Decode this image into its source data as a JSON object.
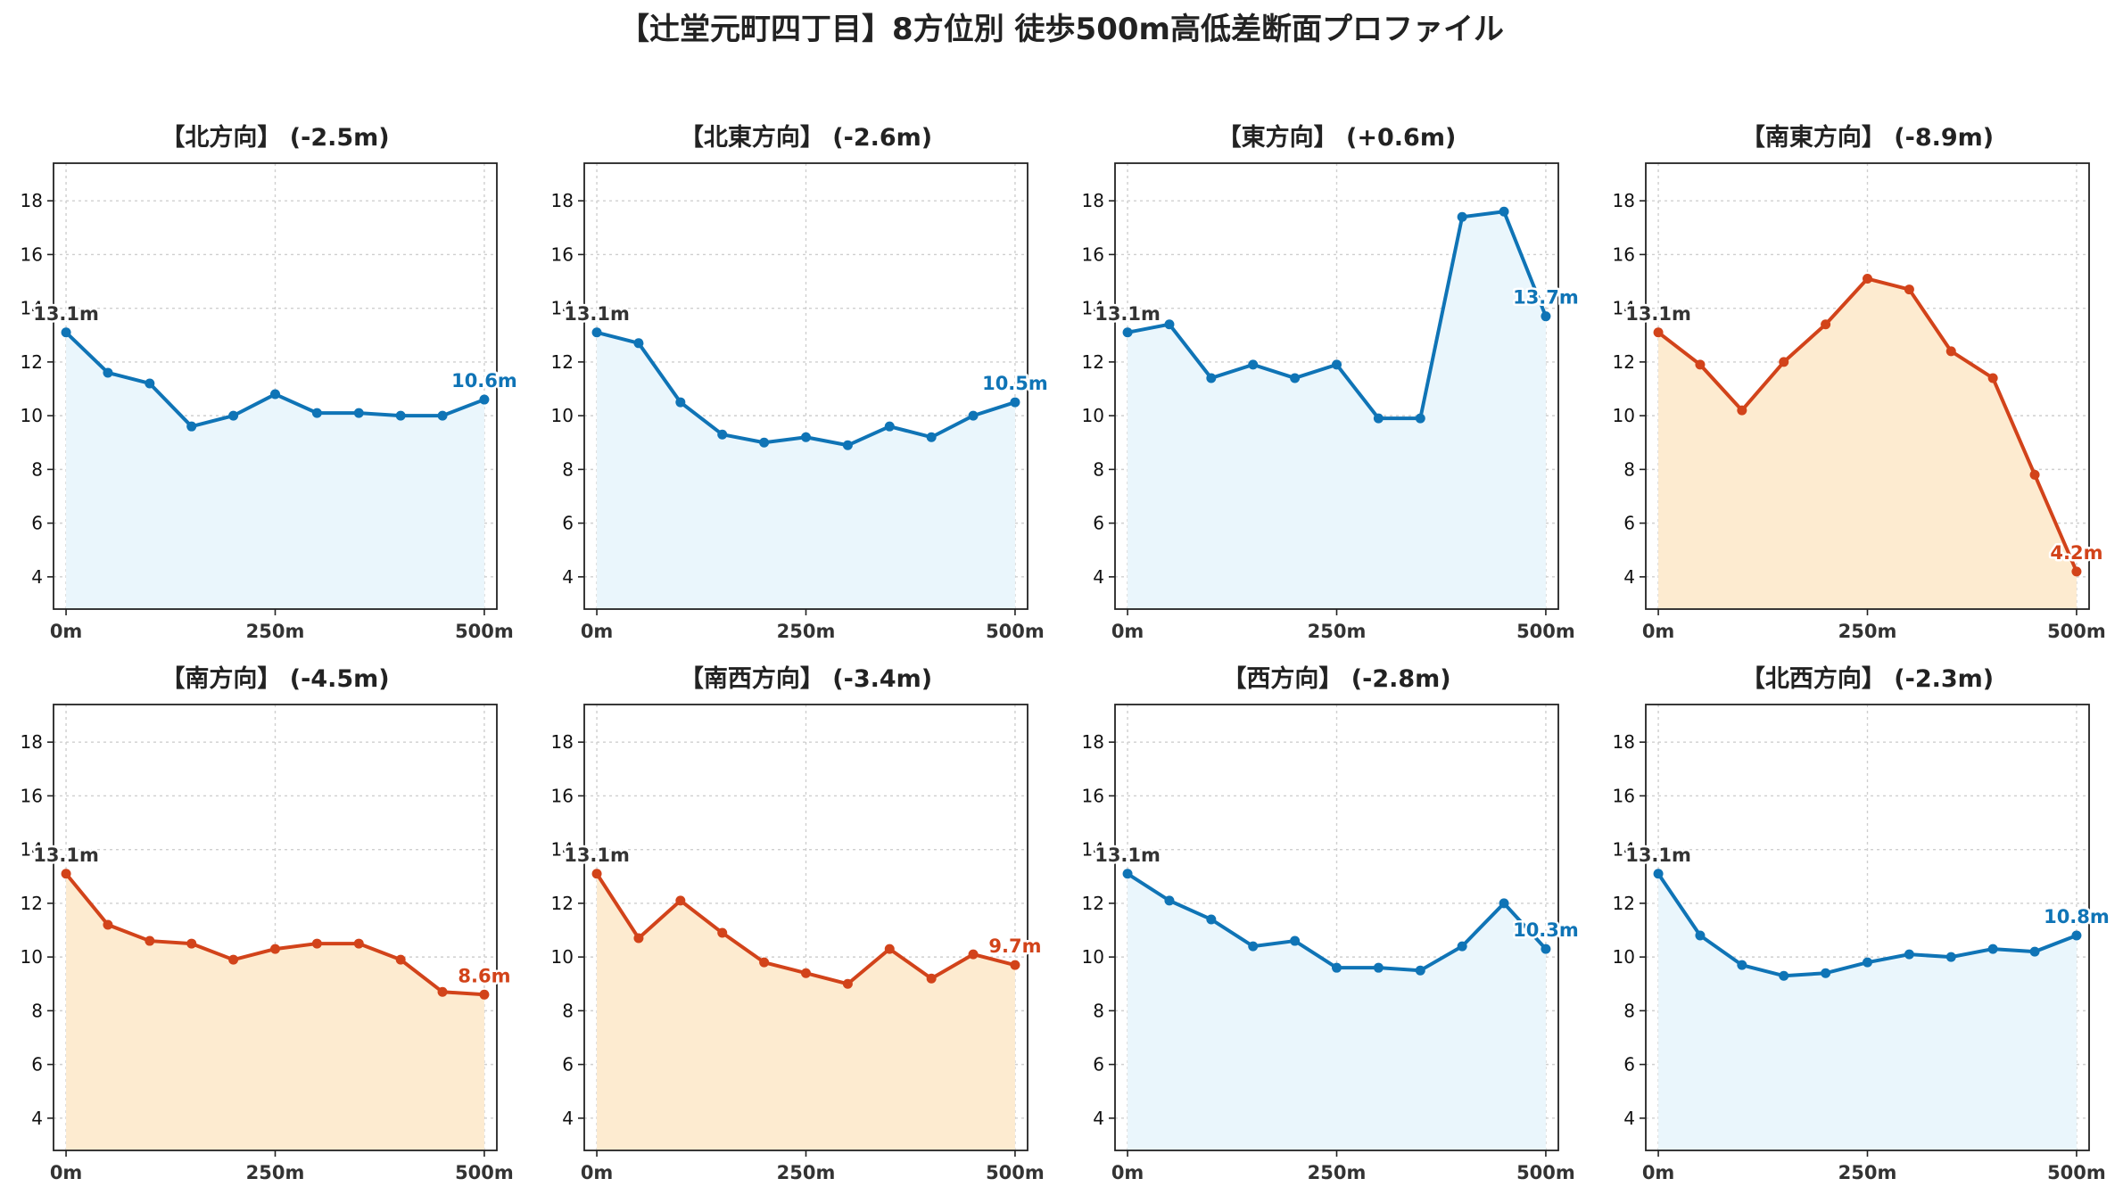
{
  "title": "【辻堂元町四丁目】8方位別 徒歩500m高低差断面プロファイル",
  "colors": {
    "down_line": "#D2431A",
    "down_fill": "#FDEBD0",
    "level_line": "#0F74B6",
    "level_fill": "#EAF6FC",
    "start_label": "#333333"
  },
  "chart_data": [
    {
      "type": "area",
      "title": "【北方向】 (-2.5m)",
      "trend": "level",
      "x": [
        0,
        50,
        100,
        150,
        200,
        250,
        300,
        350,
        400,
        450,
        500
      ],
      "values": [
        13.1,
        11.6,
        11.2,
        9.6,
        10.0,
        10.8,
        10.1,
        10.1,
        10.0,
        10.0,
        10.6
      ],
      "start_label": "13.1m",
      "end_label": "10.6m",
      "xticks": [
        "0m",
        "250m",
        "500m"
      ],
      "yticks": [
        "4",
        "6",
        "8",
        "10",
        "12",
        "14",
        "16",
        "18"
      ],
      "ylim": [
        2.8,
        19.4
      ],
      "xlim": [
        -15,
        515
      ],
      "grid": true
    },
    {
      "type": "area",
      "title": "【北東方向】 (-2.6m)",
      "trend": "level",
      "x": [
        0,
        50,
        100,
        150,
        200,
        250,
        300,
        350,
        400,
        450,
        500
      ],
      "values": [
        13.1,
        12.7,
        10.5,
        9.3,
        9.0,
        9.2,
        8.9,
        9.6,
        9.2,
        10.0,
        10.5
      ],
      "start_label": "13.1m",
      "end_label": "10.5m",
      "xticks": [
        "0m",
        "250m",
        "500m"
      ],
      "yticks": [
        "4",
        "6",
        "8",
        "10",
        "12",
        "14",
        "16",
        "18"
      ],
      "ylim": [
        2.8,
        19.4
      ],
      "xlim": [
        -15,
        515
      ],
      "grid": true
    },
    {
      "type": "area",
      "title": "【東方向】 (+0.6m)",
      "trend": "level",
      "x": [
        0,
        50,
        100,
        150,
        200,
        250,
        300,
        350,
        400,
        450,
        500
      ],
      "values": [
        13.1,
        13.4,
        11.4,
        11.9,
        11.4,
        11.9,
        9.9,
        9.9,
        17.4,
        17.6,
        13.7
      ],
      "start_label": "13.1m",
      "end_label": "13.7m",
      "xticks": [
        "0m",
        "250m",
        "500m"
      ],
      "yticks": [
        "4",
        "6",
        "8",
        "10",
        "12",
        "14",
        "16",
        "18"
      ],
      "ylim": [
        2.8,
        19.4
      ],
      "xlim": [
        -15,
        515
      ],
      "grid": true
    },
    {
      "type": "area",
      "title": "【南東方向】 (-8.9m)",
      "trend": "down",
      "x": [
        0,
        50,
        100,
        150,
        200,
        250,
        300,
        350,
        400,
        450,
        500
      ],
      "values": [
        13.1,
        11.9,
        10.2,
        12.0,
        13.4,
        15.1,
        14.7,
        12.4,
        11.4,
        7.8,
        4.2
      ],
      "start_label": "13.1m",
      "end_label": "4.2m",
      "xticks": [
        "0m",
        "250m",
        "500m"
      ],
      "yticks": [
        "4",
        "6",
        "8",
        "10",
        "12",
        "14",
        "16",
        "18"
      ],
      "ylim": [
        2.8,
        19.4
      ],
      "xlim": [
        -15,
        515
      ],
      "grid": true
    },
    {
      "type": "area",
      "title": "【南方向】 (-4.5m)",
      "trend": "down",
      "x": [
        0,
        50,
        100,
        150,
        200,
        250,
        300,
        350,
        400,
        450,
        500
      ],
      "values": [
        13.1,
        11.2,
        10.6,
        10.5,
        9.9,
        10.3,
        10.5,
        10.5,
        9.9,
        8.7,
        8.6
      ],
      "start_label": "13.1m",
      "end_label": "8.6m",
      "xticks": [
        "0m",
        "250m",
        "500m"
      ],
      "yticks": [
        "4",
        "6",
        "8",
        "10",
        "12",
        "14",
        "16",
        "18"
      ],
      "ylim": [
        2.8,
        19.4
      ],
      "xlim": [
        -15,
        515
      ],
      "grid": true
    },
    {
      "type": "area",
      "title": "【南西方向】 (-3.4m)",
      "trend": "down",
      "x": [
        0,
        50,
        100,
        150,
        200,
        250,
        300,
        350,
        400,
        450,
        500
      ],
      "values": [
        13.1,
        10.7,
        12.1,
        10.9,
        9.8,
        9.4,
        9.0,
        10.3,
        9.2,
        10.1,
        9.7
      ],
      "start_label": "13.1m",
      "end_label": "9.7m",
      "xticks": [
        "0m",
        "250m",
        "500m"
      ],
      "yticks": [
        "4",
        "6",
        "8",
        "10",
        "12",
        "14",
        "16",
        "18"
      ],
      "ylim": [
        2.8,
        19.4
      ],
      "xlim": [
        -15,
        515
      ],
      "grid": true
    },
    {
      "type": "area",
      "title": "【西方向】 (-2.8m)",
      "trend": "level",
      "x": [
        0,
        50,
        100,
        150,
        200,
        250,
        300,
        350,
        400,
        450,
        500
      ],
      "values": [
        13.1,
        12.1,
        11.4,
        10.4,
        10.6,
        9.6,
        9.6,
        9.5,
        10.4,
        12.0,
        10.3
      ],
      "start_label": "13.1m",
      "end_label": "10.3m",
      "xticks": [
        "0m",
        "250m",
        "500m"
      ],
      "yticks": [
        "4",
        "6",
        "8",
        "10",
        "12",
        "14",
        "16",
        "18"
      ],
      "ylim": [
        2.8,
        19.4
      ],
      "xlim": [
        -15,
        515
      ],
      "grid": true
    },
    {
      "type": "area",
      "title": "【北西方向】 (-2.3m)",
      "trend": "level",
      "x": [
        0,
        50,
        100,
        150,
        200,
        250,
        300,
        350,
        400,
        450,
        500
      ],
      "values": [
        13.1,
        10.8,
        9.7,
        9.3,
        9.4,
        9.8,
        10.1,
        10.0,
        10.3,
        10.2,
        10.8
      ],
      "start_label": "13.1m",
      "end_label": "10.8m",
      "xticks": [
        "0m",
        "250m",
        "500m"
      ],
      "yticks": [
        "4",
        "6",
        "8",
        "10",
        "12",
        "14",
        "16",
        "18"
      ],
      "ylim": [
        2.8,
        19.4
      ],
      "xlim": [
        -15,
        515
      ],
      "grid": true
    }
  ]
}
